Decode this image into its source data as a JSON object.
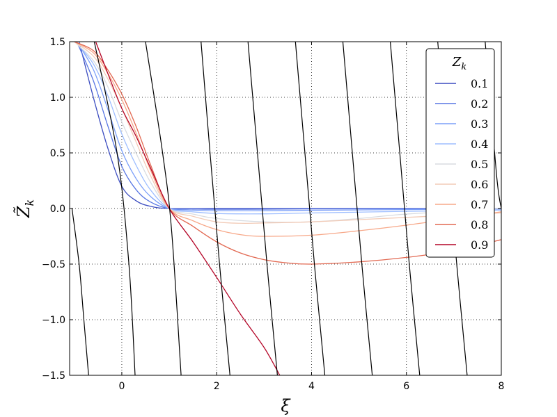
{
  "chart_data": {
    "type": "line",
    "xlabel": "ξ",
    "ylabel": "Z̃",
    "ylabel_subscript": "k",
    "xlim": [
      -1.1,
      8
    ],
    "ylim": [
      -1.5,
      1.5
    ],
    "xticks": [
      0,
      2,
      4,
      6,
      8
    ],
    "yticks": [
      -1.5,
      -1.0,
      -0.5,
      0.0,
      0.5,
      1.0,
      1.5
    ],
    "xtick_labels": [
      "0",
      "2",
      "4",
      "6",
      "8"
    ],
    "ytick_labels": [
      "−1.5",
      "−1.0",
      "−0.5",
      "0.0",
      "0.5",
      "1.0",
      "1.5"
    ],
    "grid": true,
    "legend": {
      "title": "Z",
      "title_subscript": "k",
      "placement": "top-right",
      "entries": [
        "0.1",
        "0.2",
        "0.3",
        "0.4",
        "0.5",
        "0.6",
        "0.7",
        "0.8",
        "0.9"
      ]
    },
    "series": [
      {
        "name": "0.1",
        "color": "#3b4cc0",
        "points": [
          [
            -0.9,
            1.5
          ],
          [
            -0.6,
            1.0
          ],
          [
            -0.3,
            0.55
          ],
          [
            0,
            0.2
          ],
          [
            0.3,
            0.07
          ],
          [
            0.6,
            0.02
          ],
          [
            1,
            0
          ],
          [
            2,
            0
          ],
          [
            4,
            0
          ],
          [
            6,
            0
          ],
          [
            8,
            0
          ]
        ]
      },
      {
        "name": "0.2",
        "color": "#5977e3",
        "points": [
          [
            -0.95,
            1.5
          ],
          [
            -0.6,
            1.15
          ],
          [
            -0.3,
            0.75
          ],
          [
            0,
            0.38
          ],
          [
            0.3,
            0.17
          ],
          [
            0.6,
            0.06
          ],
          [
            1,
            0
          ],
          [
            1.5,
            -0.005
          ],
          [
            2,
            -0.007
          ],
          [
            3,
            -0.006
          ],
          [
            4,
            -0.004
          ],
          [
            6,
            -0.002
          ],
          [
            8,
            -0.001
          ]
        ]
      },
      {
        "name": "0.3",
        "color": "#7b9ff9",
        "points": [
          [
            -0.95,
            1.5
          ],
          [
            -0.6,
            1.25
          ],
          [
            -0.3,
            0.9
          ],
          [
            0,
            0.52
          ],
          [
            0.3,
            0.27
          ],
          [
            0.6,
            0.11
          ],
          [
            1,
            0
          ],
          [
            1.5,
            -0.015
          ],
          [
            2,
            -0.02
          ],
          [
            3,
            -0.02
          ],
          [
            4,
            -0.016
          ],
          [
            6,
            -0.01
          ],
          [
            8,
            -0.006
          ]
        ]
      },
      {
        "name": "0.4",
        "color": "#9ebeff",
        "points": [
          [
            -0.98,
            1.5
          ],
          [
            -0.6,
            1.3
          ],
          [
            -0.3,
            1.02
          ],
          [
            0,
            0.67
          ],
          [
            0.3,
            0.39
          ],
          [
            0.6,
            0.17
          ],
          [
            1,
            0
          ],
          [
            1.5,
            -0.03
          ],
          [
            2,
            -0.045
          ],
          [
            3,
            -0.048
          ],
          [
            4,
            -0.04
          ],
          [
            6,
            -0.026
          ],
          [
            8,
            -0.015
          ]
        ]
      },
      {
        "name": "0.5",
        "color": "#d9dce1",
        "points": [
          [
            -1.0,
            1.5
          ],
          [
            -0.6,
            1.33
          ],
          [
            -0.3,
            1.1
          ],
          [
            0,
            0.78
          ],
          [
            0.3,
            0.5
          ],
          [
            0.6,
            0.24
          ],
          [
            1,
            0
          ],
          [
            1.5,
            -0.05
          ],
          [
            2,
            -0.09
          ],
          [
            3,
            -0.12
          ],
          [
            4,
            -0.12
          ],
          [
            5,
            -0.09
          ],
          [
            6,
            -0.05
          ],
          [
            8,
            0.0
          ]
        ]
      },
      {
        "name": "0.6",
        "color": "#f2cbb7",
        "points": [
          [
            -1.0,
            1.5
          ],
          [
            -0.6,
            1.37
          ],
          [
            -0.3,
            1.17
          ],
          [
            0,
            0.9
          ],
          [
            0.3,
            0.6
          ],
          [
            0.6,
            0.3
          ],
          [
            1,
            0
          ],
          [
            1.5,
            -0.07
          ],
          [
            2,
            -0.12
          ],
          [
            2.5,
            -0.133
          ],
          [
            3,
            -0.13
          ],
          [
            4,
            -0.12
          ],
          [
            5,
            -0.1
          ],
          [
            6,
            -0.08
          ],
          [
            7,
            -0.06
          ],
          [
            8,
            -0.04
          ]
        ]
      },
      {
        "name": "0.7",
        "color": "#f7a889",
        "points": [
          [
            -1.0,
            1.5
          ],
          [
            -0.6,
            1.4
          ],
          [
            -0.3,
            1.22
          ],
          [
            0,
            0.98
          ],
          [
            0.3,
            0.68
          ],
          [
            0.6,
            0.35
          ],
          [
            1,
            0
          ],
          [
            1.5,
            -0.11
          ],
          [
            2,
            -0.19
          ],
          [
            2.5,
            -0.235
          ],
          [
            3,
            -0.25
          ],
          [
            4,
            -0.24
          ],
          [
            5,
            -0.2
          ],
          [
            6,
            -0.15
          ],
          [
            7,
            -0.09
          ],
          [
            8,
            -0.03
          ]
        ]
      },
      {
        "name": "0.8",
        "color": "#e26952",
        "points": [
          [
            -1.0,
            1.5
          ],
          [
            -0.6,
            1.42
          ],
          [
            -0.3,
            1.25
          ],
          [
            0,
            1.03
          ],
          [
            0.3,
            0.74
          ],
          [
            0.6,
            0.4
          ],
          [
            1,
            0
          ],
          [
            1.5,
            -0.16
          ],
          [
            2,
            -0.3
          ],
          [
            2.5,
            -0.4
          ],
          [
            3,
            -0.46
          ],
          [
            3.5,
            -0.49
          ],
          [
            4,
            -0.5
          ],
          [
            5,
            -0.48
          ],
          [
            6,
            -0.44
          ],
          [
            7,
            -0.38
          ],
          [
            8,
            -0.28
          ]
        ]
      },
      {
        "name": "0.9",
        "color": "#b40426",
        "points": [
          [
            -0.55,
            1.5
          ],
          [
            -0.3,
            1.22
          ],
          [
            0,
            0.9
          ],
          [
            0.3,
            0.65
          ],
          [
            0.6,
            0.37
          ],
          [
            1,
            0
          ],
          [
            1.5,
            -0.3
          ],
          [
            2,
            -0.62
          ],
          [
            2.5,
            -0.95
          ],
          [
            3,
            -1.25
          ],
          [
            3.33,
            -1.5
          ]
        ]
      },
      {
        "name": "",
        "color": "#000000",
        "points": [
          [
            -1.05,
            0
          ],
          [
            -0.9,
            -0.5
          ],
          [
            -0.8,
            -1.0
          ],
          [
            -0.7,
            -1.5
          ]
        ]
      },
      {
        "name": "",
        "color": "#000000",
        "points": [
          [
            -0.58,
            1.5
          ],
          [
            -0.1,
            0.5
          ],
          [
            0.15,
            -0.5
          ],
          [
            0.28,
            -1.5
          ]
        ]
      },
      {
        "name": "",
        "color": "#000000",
        "points": [
          [
            0.5,
            1.5
          ],
          [
            0.86,
            0.5
          ],
          [
            1.05,
            -0.2
          ],
          [
            1.25,
            -1.5
          ]
        ]
      },
      {
        "name": "",
        "color": "#000000",
        "points": [
          [
            1.67,
            1.5
          ],
          [
            1.86,
            0.5
          ],
          [
            2.06,
            -0.5
          ],
          [
            2.28,
            -1.5
          ]
        ]
      },
      {
        "name": "",
        "color": "#000000",
        "points": [
          [
            2.66,
            1.5
          ],
          [
            2.86,
            0.5
          ],
          [
            3.06,
            -0.5
          ],
          [
            3.28,
            -1.5
          ]
        ]
      },
      {
        "name": "",
        "color": "#000000",
        "points": [
          [
            3.66,
            1.5
          ],
          [
            3.86,
            0.5
          ],
          [
            4.06,
            -0.5
          ],
          [
            4.28,
            -1.5
          ]
        ]
      },
      {
        "name": "",
        "color": "#000000",
        "points": [
          [
            4.66,
            1.5
          ],
          [
            4.86,
            0.5
          ],
          [
            5.06,
            -0.5
          ],
          [
            5.28,
            -1.5
          ]
        ]
      },
      {
        "name": "",
        "color": "#000000",
        "points": [
          [
            5.66,
            1.5
          ],
          [
            5.86,
            0.5
          ],
          [
            6.06,
            -0.5
          ],
          [
            6.28,
            -1.5
          ]
        ]
      },
      {
        "name": "",
        "color": "#000000",
        "points": [
          [
            6.66,
            1.5
          ],
          [
            6.86,
            0.5
          ],
          [
            7.06,
            -0.5
          ],
          [
            7.28,
            -1.5
          ]
        ]
      },
      {
        "name": "",
        "color": "#000000",
        "points": [
          [
            7.66,
            1.5
          ],
          [
            7.9,
            0.3
          ],
          [
            8.0,
            0.0
          ]
        ]
      }
    ]
  }
}
